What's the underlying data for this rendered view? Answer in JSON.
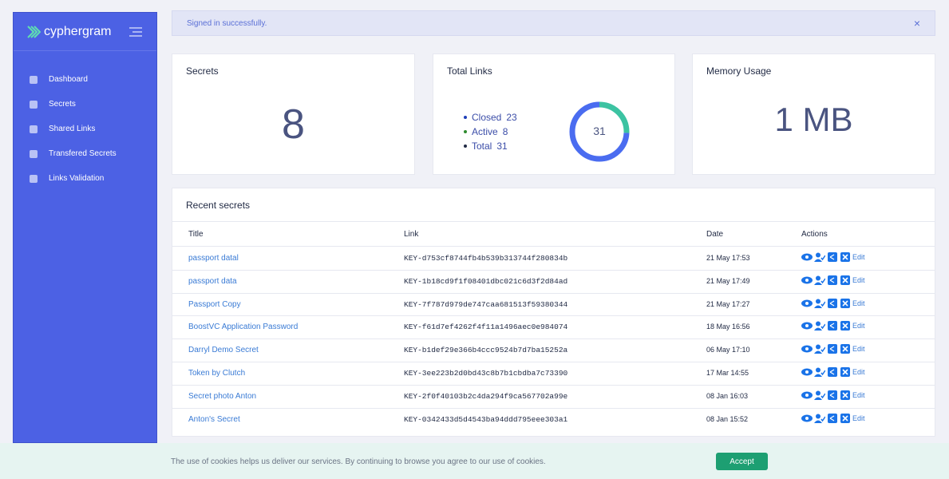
{
  "sidebar": {
    "brand": "cyphergram",
    "menu": [
      "Dashboard",
      "Secrets",
      "Shared Links",
      "Transfered Secrets",
      "Links Validation"
    ]
  },
  "alert": {
    "message": "Signed in successfully.",
    "close": "×"
  },
  "cards": {
    "secrets": {
      "title": "Secrets",
      "value": 8
    },
    "links": {
      "title": "Total Links",
      "legend": [
        {
          "label": "Closed",
          "value": 23,
          "color": "#4a6cf0",
          "dot": "#1f3fb8"
        },
        {
          "label": "Active",
          "value": 8,
          "color": "#3cc3a2",
          "dot": "#2e8b2e"
        },
        {
          "label": "Total",
          "value": 31,
          "dot": "#222b45"
        }
      ]
    },
    "memory": {
      "title": "Memory Usage",
      "value": "1 MB"
    }
  },
  "recent": {
    "title": "Recent secrets",
    "columns": [
      "Title",
      "Link",
      "Date",
      "Actions"
    ],
    "action_label": "Edit",
    "rows": [
      [
        "passport datal",
        "KEY-d753cf8744fb4b539b313744f280834b",
        "21 May 17:53"
      ],
      [
        "passport data",
        "KEY-1b18cd9f1f08401dbc021c6d3f2d84ad",
        "21 May 17:49"
      ],
      [
        "Passport Copy",
        "KEY-7f787d979de747caa681513f59380344",
        "21 May 17:27"
      ],
      [
        "BoostVC Application Password",
        "KEY-f61d7ef4262f4f11a1496aec0e984074",
        "18 May 16:56"
      ],
      [
        "Darryl Demo Secret",
        "KEY-b1def29e366b4ccc9524b7d7ba15252a",
        "06 May 17:10"
      ],
      [
        "Token by Clutch",
        "KEY-3ee223b2d0bd43c8b7b1cbdba7c73390",
        "17 Mar 14:55"
      ],
      [
        "Secret photo Anton",
        "KEY-2f0f40103b2c4da294f9ca567702a99e",
        "08 Jan 16:03"
      ],
      [
        "Anton's Secret",
        "KEY-0342433d5d4543ba94ddd795eee303a1",
        "08 Jan 15:52"
      ]
    ]
  },
  "cookie": {
    "message": "The use of cookies helps us deliver our services. By continuing to browse you agree to our use of cookies.",
    "button": "Accept"
  }
}
